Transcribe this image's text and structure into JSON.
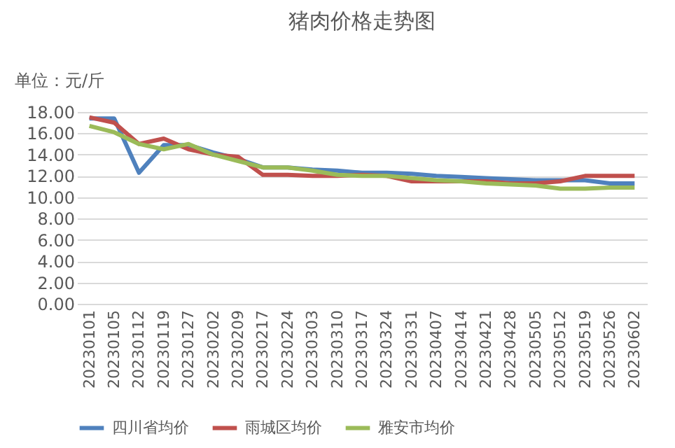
{
  "chart_data": {
    "type": "line",
    "title": "猪肉价格走势图",
    "ylabel": "单位：元/斤",
    "categories": [
      "20230101",
      "20230105",
      "20230112",
      "20230119",
      "20230127",
      "20230202",
      "20230209",
      "20230217",
      "20230224",
      "20230303",
      "20230310",
      "20230317",
      "20230324",
      "20230331",
      "20230407",
      "20230414",
      "20230421",
      "20230428",
      "20230505",
      "20230512",
      "20230519",
      "20230526",
      "20230602"
    ],
    "series": [
      {
        "name": "四川省均价",
        "color": "#4f81bd",
        "values": [
          17.4,
          17.4,
          12.3,
          14.9,
          14.9,
          14.2,
          13.6,
          12.8,
          12.8,
          12.6,
          12.5,
          12.3,
          12.3,
          12.2,
          12.0,
          11.9,
          11.8,
          11.7,
          11.6,
          11.6,
          11.6,
          11.3,
          11.3
        ]
      },
      {
        "name": "雨城区均价",
        "color": "#c0504d",
        "values": [
          17.5,
          17.0,
          15.0,
          15.5,
          14.5,
          14.0,
          13.8,
          12.1,
          12.1,
          12.0,
          12.0,
          12.1,
          12.0,
          11.5,
          11.5,
          11.5,
          11.5,
          11.3,
          11.3,
          11.5,
          12.0,
          12.0,
          12.0
        ]
      },
      {
        "name": "雅安市均价",
        "color": "#9bbb59",
        "values": [
          16.7,
          16.1,
          15.0,
          14.5,
          15.0,
          14.0,
          13.4,
          12.8,
          12.8,
          12.5,
          12.1,
          12.0,
          12.0,
          11.8,
          11.6,
          11.5,
          11.3,
          11.2,
          11.1,
          10.8,
          10.8,
          10.9,
          10.9
        ]
      }
    ],
    "ylim": [
      0,
      18
    ],
    "yticks": [
      {
        "value": 0,
        "label": "0.00"
      },
      {
        "value": 2,
        "label": "2.00"
      },
      {
        "value": 4,
        "label": "4.00"
      },
      {
        "value": 6,
        "label": "6.00"
      },
      {
        "value": 8,
        "label": "8.00"
      },
      {
        "value": 10,
        "label": "10.00"
      },
      {
        "value": 12,
        "label": "12.00"
      },
      {
        "value": 14,
        "label": "14.00"
      },
      {
        "value": 16,
        "label": "16.00"
      },
      {
        "value": 18,
        "label": "18.00"
      }
    ],
    "grid": "y",
    "legend": "bottom",
    "marker": "none",
    "line_style": "solid"
  }
}
